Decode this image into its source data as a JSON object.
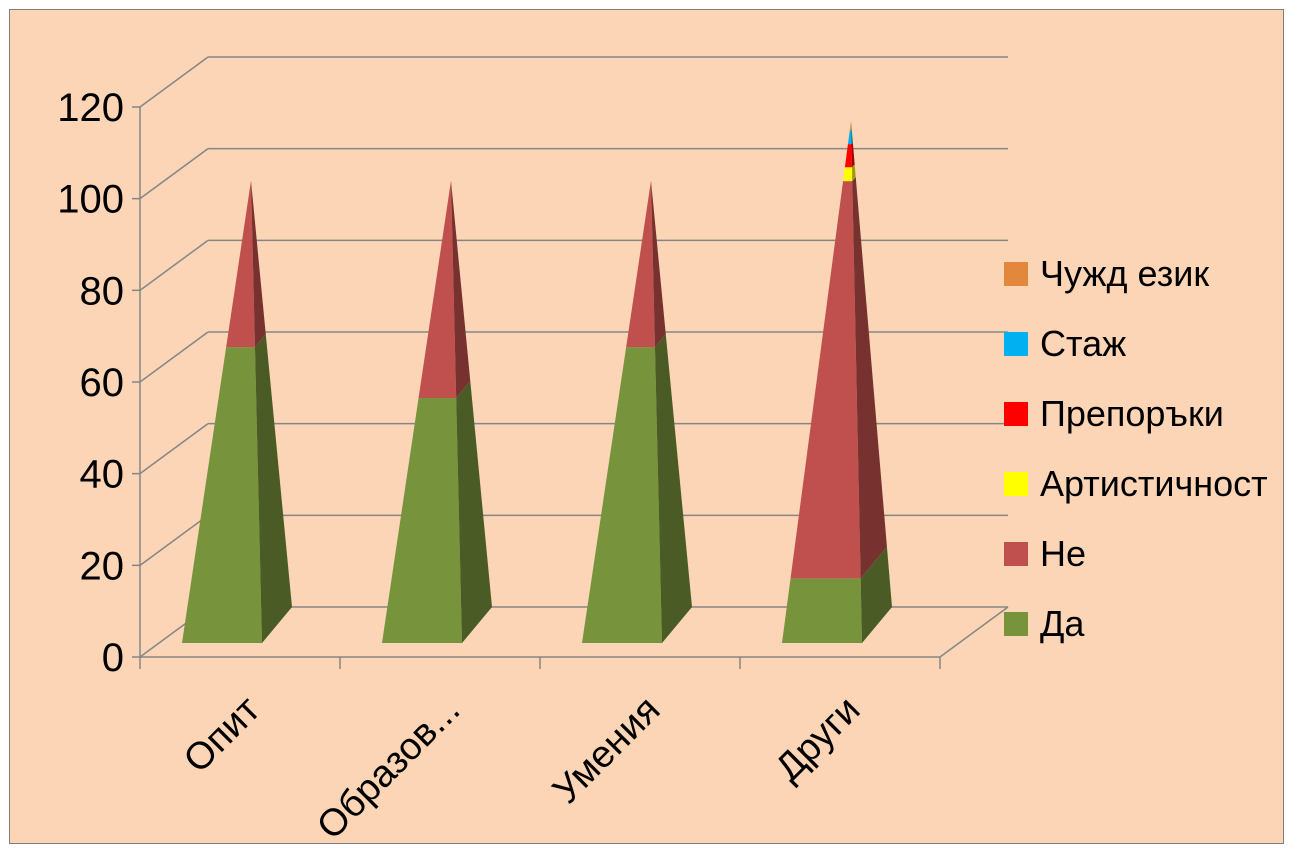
{
  "chart_data": {
    "type": "bar",
    "subtype": "3d-stacked-pyramid",
    "title": "",
    "xlabel": "",
    "ylabel": "",
    "categories": [
      "Опит",
      "Образов...",
      "Умения",
      "Други"
    ],
    "ylim": [
      0,
      120
    ],
    "yticks": [
      0,
      20,
      40,
      60,
      80,
      100,
      120
    ],
    "grid": true,
    "legend_position": "right",
    "series": [
      {
        "name": "Да",
        "color": "#77933c",
        "values": [
          64,
          53,
          64,
          14
        ]
      },
      {
        "name": "Не",
        "color": "#c0504d",
        "values": [
          36,
          47,
          36,
          86
        ]
      },
      {
        "name": "Артистичност",
        "color": "#ffff00",
        "values": [
          0,
          0,
          0,
          3
        ]
      },
      {
        "name": "Препоръки",
        "color": "#ff0000",
        "values": [
          0,
          0,
          0,
          5
        ]
      },
      {
        "name": "Стаж",
        "color": "#00b0f0",
        "values": [
          0,
          0,
          0,
          3
        ]
      },
      {
        "name": "Чужд език",
        "color": "#e3873d",
        "values": [
          0,
          0,
          0,
          2
        ]
      }
    ]
  }
}
